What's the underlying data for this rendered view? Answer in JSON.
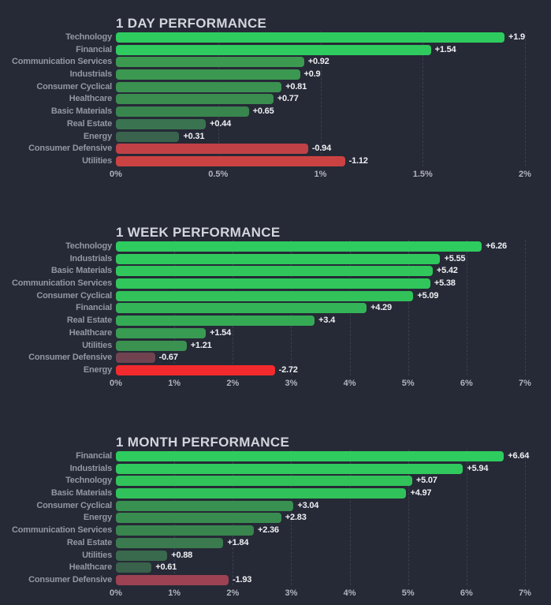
{
  "colors": {
    "background": "#262936",
    "title_text": "#d3d5dc",
    "category_text": "#9298a3",
    "value_text": "#eef0f3",
    "axis_text": "#b0b4bd",
    "gridline": "#3b4050"
  },
  "chart_data": [
    {
      "type": "bar",
      "orientation": "horizontal",
      "title": "1 DAY PERFORMANCE",
      "xlabel": "",
      "ylabel": "",
      "xlim": [
        0,
        2
      ],
      "grid": "vertical-dashed",
      "tick_labels": [
        "0%",
        "0.5%",
        "1%",
        "1.5%",
        "2%"
      ],
      "note": "negative values drawn by absolute magnitude from zero",
      "categories": [
        "Technology",
        "Financial",
        "Communication Services",
        "Industrials",
        "Consumer Cyclical",
        "Healthcare",
        "Basic Materials",
        "Real Estate",
        "Energy",
        "Consumer Defensive",
        "Utilities"
      ],
      "values": [
        1.9,
        1.54,
        0.92,
        0.9,
        0.81,
        0.77,
        0.65,
        0.44,
        0.31,
        -0.94,
        -1.12
      ],
      "value_labels": [
        "+1.9",
        "+1.54",
        "+0.92",
        "+0.9",
        "+0.81",
        "+0.77",
        "+0.65",
        "+0.44",
        "+0.31",
        "-0.94",
        "-1.12"
      ],
      "bar_colors": [
        "#2ecc5e",
        "#2fcb5e",
        "#3b9a50",
        "#3b9850",
        "#3a9150",
        "#3a8d4f",
        "#39854e",
        "#3a7350",
        "#39634c",
        "#c04146",
        "#cb4242"
      ]
    },
    {
      "type": "bar",
      "orientation": "horizontal",
      "title": "1 WEEK PERFORMANCE",
      "xlabel": "",
      "ylabel": "",
      "xlim": [
        0,
        7
      ],
      "grid": "vertical-dashed",
      "tick_labels": [
        "0%",
        "1%",
        "2%",
        "3%",
        "4%",
        "5%",
        "6%",
        "7%"
      ],
      "note": "negative values drawn by absolute magnitude from zero",
      "categories": [
        "Technology",
        "Industrials",
        "Basic Materials",
        "Communication Services",
        "Consumer Cyclical",
        "Financial",
        "Real Estate",
        "Healthcare",
        "Utilities",
        "Consumer Defensive",
        "Energy"
      ],
      "values": [
        6.26,
        5.55,
        5.42,
        5.38,
        5.09,
        4.29,
        3.4,
        1.54,
        1.21,
        -0.67,
        -2.72
      ],
      "value_labels": [
        "+6.26",
        "+5.55",
        "+5.42",
        "+5.38",
        "+5.09",
        "+4.29",
        "+3.4",
        "+1.54",
        "+1.21",
        "-0.67",
        "-2.72"
      ],
      "bar_colors": [
        "#2ecc5e",
        "#2fc85d",
        "#30c65b",
        "#30c65b",
        "#31c25a",
        "#33b457",
        "#35aa55",
        "#389b52",
        "#3a9150",
        "#714350",
        "#f22a2d"
      ]
    },
    {
      "type": "bar",
      "orientation": "horizontal",
      "title": "1 MONTH PERFORMANCE",
      "xlabel": "",
      "ylabel": "",
      "xlim": [
        0,
        7
      ],
      "grid": "vertical-dashed",
      "tick_labels": [
        "0%",
        "1%",
        "2%",
        "3%",
        "4%",
        "5%",
        "6%",
        "7%"
      ],
      "note": "negative values drawn by absolute magnitude from zero",
      "categories": [
        "Financial",
        "Industrials",
        "Technology",
        "Basic Materials",
        "Consumer Cyclical",
        "Energy",
        "Communication Services",
        "Real Estate",
        "Utilities",
        "Healthcare",
        "Consumer Defensive"
      ],
      "values": [
        6.64,
        5.94,
        5.07,
        4.97,
        3.04,
        2.83,
        2.36,
        1.84,
        0.88,
        0.61,
        -1.93
      ],
      "value_labels": [
        "+6.64",
        "+5.94",
        "+5.07",
        "+4.97",
        "+3.04",
        "+2.83",
        "+2.36",
        "+1.84",
        "+0.88",
        "+0.61",
        "-1.93"
      ],
      "bar_colors": [
        "#2ecc5e",
        "#2fc95d",
        "#31c25a",
        "#31c15a",
        "#389150",
        "#388c4f",
        "#39854e",
        "#3a7a4e",
        "#3a6a4d",
        "#39614b",
        "#9c4253"
      ]
    }
  ]
}
